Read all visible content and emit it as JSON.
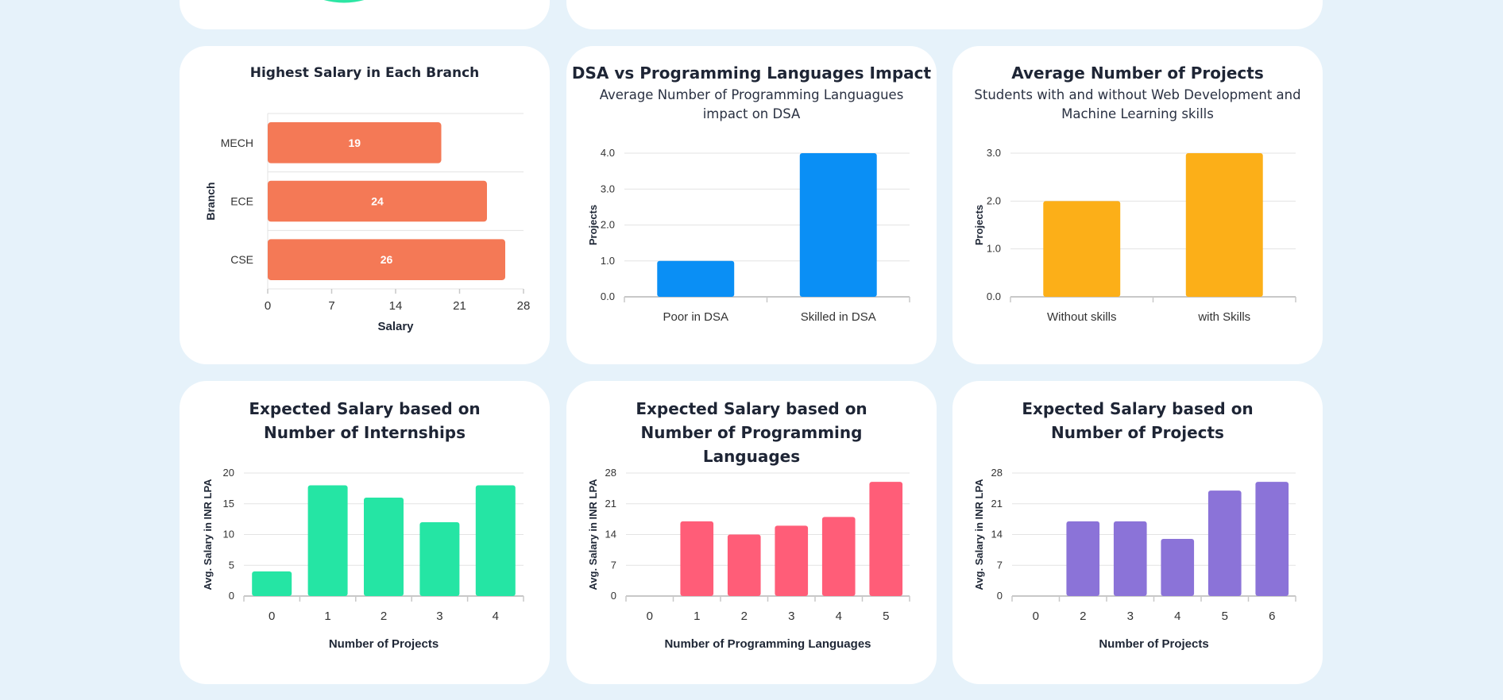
{
  "colors": {
    "background": "#e6f2fa",
    "card": "#ffffff",
    "grid": "#e3e3e3",
    "axis": "#c8c8c8",
    "tick_text": "#333333",
    "title_text": "#1e2535",
    "arc": "#2de6a4"
  },
  "chart_data": [
    {
      "id": "branch",
      "type": "bar",
      "orientation": "horizontal",
      "title": "Highest Salary in Each Branch",
      "subtitle": "",
      "xlabel": "Salary",
      "ylabel": "Branch",
      "categories": [
        "MECH",
        "ECE",
        "CSE"
      ],
      "values": [
        19,
        24,
        26
      ],
      "data_labels": [
        "19",
        "24",
        "26"
      ],
      "xlim": [
        0,
        28
      ],
      "ticks": [
        "0",
        "7",
        "14",
        "21",
        "28"
      ],
      "color": "#f47956",
      "grid": true
    },
    {
      "id": "dsa",
      "type": "bar",
      "title": "DSA vs Programming Languages Impact",
      "subtitle": "Average Number of Programming Languagues impact on DSA",
      "xlabel": "",
      "ylabel": "Projects",
      "categories": [
        "Poor in DSA",
        "Skilled in DSA"
      ],
      "values": [
        1,
        4
      ],
      "ylim": [
        0,
        4
      ],
      "ticks": [
        "0.0",
        "1.0",
        "2.0",
        "3.0",
        "4.0"
      ],
      "color": "#0a8ff5",
      "grid": true
    },
    {
      "id": "projects",
      "type": "bar",
      "title": "Average Number of Projects",
      "subtitle": "Students with and without Web Development and Machine Learning skills",
      "xlabel": "",
      "ylabel": "Projects",
      "categories": [
        "Without skills",
        "with Skills"
      ],
      "values": [
        2,
        3
      ],
      "ylim": [
        0,
        3
      ],
      "ticks": [
        "0.0",
        "1.0",
        "2.0",
        "3.0"
      ],
      "color": "#fcaf18",
      "grid": true
    },
    {
      "id": "internships",
      "type": "bar",
      "title": "Expected Salary based on Number of Internships",
      "subtitle": "",
      "xlabel": "Number of Projects",
      "ylabel": "Avg. Salary in INR LPA",
      "categories": [
        "0",
        "1",
        "2",
        "3",
        "4"
      ],
      "values": [
        4,
        18,
        16,
        12,
        18
      ],
      "ylim": [
        0,
        20
      ],
      "ticks": [
        "0",
        "5",
        "10",
        "15",
        "20"
      ],
      "color": "#25e5a4",
      "grid": true
    },
    {
      "id": "languages",
      "type": "bar",
      "title": "Expected Salary based on Number of Programming Languages",
      "subtitle": "",
      "xlabel": "Number of Programming Languages",
      "ylabel": "Avg. Salary in INR LPA",
      "categories": [
        "0",
        "1",
        "2",
        "3",
        "4",
        "5"
      ],
      "values": [
        0,
        17,
        14,
        16,
        18,
        26
      ],
      "ylim": [
        0,
        28
      ],
      "ticks": [
        "0",
        "7",
        "14",
        "21",
        "28"
      ],
      "color": "#ff5d78",
      "grid": true
    },
    {
      "id": "numprojects",
      "type": "bar",
      "title": "Expected Salary based on Number of Projects",
      "subtitle": "",
      "xlabel": "Number of Projects",
      "ylabel": "Avg. Salary in INR LPA",
      "categories": [
        "0",
        "2",
        "3",
        "4",
        "5",
        "6"
      ],
      "values": [
        0,
        17,
        17,
        13,
        24,
        26
      ],
      "ylim": [
        0,
        28
      ],
      "ticks": [
        "0",
        "7",
        "14",
        "21",
        "28"
      ],
      "color": "#8b73d8",
      "grid": true
    }
  ]
}
